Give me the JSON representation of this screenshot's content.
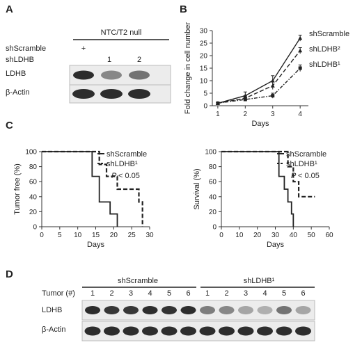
{
  "panels": {
    "a": {
      "letter": "A",
      "group_header": "NTC/T2 null",
      "row_labels": [
        "shScramble",
        "shLDHB"
      ],
      "lane_marks_scramble": [
        "+",
        "",
        ""
      ],
      "lane_marks_ldhb": [
        "",
        "1",
        "2"
      ],
      "blots": [
        {
          "label": "LDHB",
          "intensities": [
            0.95,
            0.5,
            0.6
          ]
        },
        {
          "label": "β-Actin",
          "intensities": [
            0.95,
            0.95,
            0.95
          ]
        }
      ]
    },
    "b": {
      "letter": "B"
    },
    "c": {
      "letter": "C"
    },
    "d": {
      "letter": "D",
      "row_label": "Tumor (#)",
      "groups": [
        {
          "name": "shScramble",
          "lanes": [
            "1",
            "2",
            "3",
            "4",
            "5",
            "6"
          ]
        },
        {
          "name": "shLDHB¹",
          "lanes": [
            "1",
            "2",
            "3",
            "4",
            "5",
            "6"
          ]
        }
      ],
      "blots": [
        {
          "label": "LDHB",
          "intensities": [
            0.95,
            0.9,
            0.9,
            0.95,
            0.92,
            0.95,
            0.55,
            0.5,
            0.35,
            0.3,
            0.6,
            0.35
          ]
        },
        {
          "label": "β-Actin",
          "intensities": [
            0.95,
            0.95,
            0.95,
            0.95,
            0.95,
            0.95,
            0.95,
            0.95,
            0.95,
            0.95,
            0.95,
            0.95
          ]
        }
      ]
    }
  },
  "chart_data": [
    {
      "panel": "B",
      "type": "line",
      "xlabel": "Days",
      "ylabel": "Fold change in cell number",
      "x": [
        1,
        2,
        3,
        4
      ],
      "xlim": [
        0.8,
        4.3
      ],
      "ylim": [
        0,
        30
      ],
      "yticks": [
        0,
        5,
        10,
        15,
        20,
        25,
        30
      ],
      "series": [
        {
          "name": "shScramble",
          "values": [
            1,
            4,
            10,
            27
          ],
          "errors": [
            0.3,
            1.5,
            2,
            1.2
          ],
          "dash": "solid",
          "marker": "triangle"
        },
        {
          "name": "shLDHB²",
          "values": [
            1,
            3,
            8,
            22
          ],
          "errors": [
            0.3,
            1,
            1.5,
            1.2
          ],
          "dash": "dash",
          "marker": "triangle"
        },
        {
          "name": "shLDHB¹",
          "values": [
            1,
            2.5,
            4,
            15
          ],
          "errors": [
            0.3,
            0.7,
            1,
            1.3
          ],
          "dash": "dashdot",
          "marker": "square"
        }
      ]
    },
    {
      "panel": "C-left",
      "type": "line",
      "xlabel": "Days",
      "ylabel": "Tumor free (%)",
      "xlim": [
        0,
        30
      ],
      "ylim": [
        0,
        100
      ],
      "xticks": [
        0,
        5,
        10,
        15,
        20,
        25,
        30
      ],
      "yticks": [
        0,
        20,
        40,
        60,
        80,
        100
      ],
      "annotation": "< 0.05",
      "series": [
        {
          "name": "shScramble",
          "x": [
            0,
            14,
            14,
            16,
            16,
            19,
            19,
            21,
            21
          ],
          "values": [
            100,
            100,
            67,
            67,
            33,
            33,
            17,
            17,
            0
          ],
          "dash": "solid"
        },
        {
          "name": "shLDHB¹",
          "x": [
            0,
            16,
            16,
            18,
            18,
            21,
            21,
            24,
            24,
            27,
            27,
            28,
            28
          ],
          "values": [
            100,
            100,
            83,
            83,
            67,
            67,
            50,
            50,
            50,
            50,
            33,
            33,
            0
          ],
          "dash": "dash"
        }
      ]
    },
    {
      "panel": "C-right",
      "type": "line",
      "xlabel": "Days",
      "ylabel": "Survival (%)",
      "xlim": [
        0,
        60
      ],
      "ylim": [
        0,
        100
      ],
      "xticks": [
        0,
        10,
        20,
        30,
        40,
        50,
        60
      ],
      "yticks": [
        0,
        20,
        40,
        60,
        80,
        100
      ],
      "annotation": "< 0.05",
      "series": [
        {
          "name": "shScramble",
          "x": [
            0,
            32,
            32,
            35,
            35,
            37,
            37,
            39,
            39,
            40,
            40
          ],
          "values": [
            100,
            100,
            67,
            67,
            50,
            50,
            33,
            33,
            17,
            17,
            0
          ],
          "dash": "solid"
        },
        {
          "name": "shLDHB¹",
          "x": [
            0,
            37,
            37,
            40,
            40,
            43,
            43,
            52,
            52
          ],
          "values": [
            100,
            100,
            80,
            80,
            60,
            60,
            40,
            40,
            40
          ],
          "dash": "dash"
        }
      ]
    }
  ]
}
